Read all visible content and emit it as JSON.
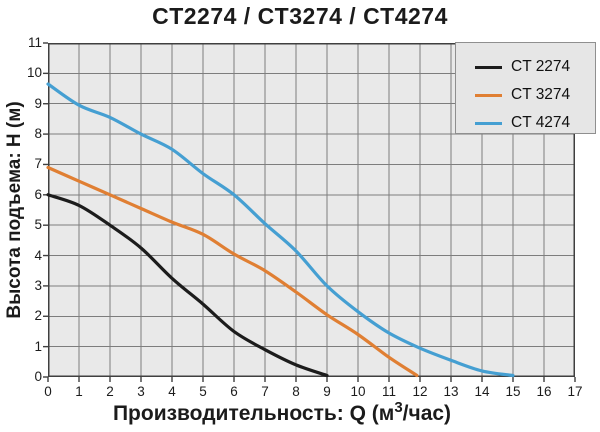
{
  "chart_data": {
    "type": "line",
    "title": "CT2274 / CT3274 / CT4274",
    "xlabel": "Производительность: Q (м³/час)",
    "xlabel_prefix": "Производительность: Q (м",
    "xlabel_sup": "3",
    "xlabel_suffix": "/час)",
    "ylabel": "Высота подъема: H (м)",
    "xlim": [
      0,
      17
    ],
    "ylim": [
      0,
      11
    ],
    "x_ticks": [
      "0",
      "1",
      "2",
      "3",
      "4",
      "5",
      "6",
      "7",
      "8",
      "9",
      "10",
      "11",
      "12",
      "13",
      "14",
      "15",
      "16",
      "17"
    ],
    "y_ticks": [
      "0",
      "1",
      "2",
      "3",
      "4",
      "5",
      "6",
      "7",
      "8",
      "9",
      "10",
      "11"
    ],
    "grid": true,
    "colors": {
      "plot_bg": "#e9e9e9",
      "grid": "#7d7d7d",
      "spine": "#3f3f3f",
      "text": "#1b1b1b",
      "legend_bg": "#e6e6e6",
      "legend_border": "#8f8f8f"
    },
    "legend_position": "top-right",
    "series": [
      {
        "name": "CT 2274",
        "color": "#1c1c1c",
        "points": [
          [
            0,
            6.0
          ],
          [
            1,
            5.65
          ],
          [
            2,
            5.0
          ],
          [
            3,
            4.25
          ],
          [
            4,
            3.25
          ],
          [
            5,
            2.4
          ],
          [
            6,
            1.5
          ],
          [
            7,
            0.9
          ],
          [
            8,
            0.4
          ],
          [
            9,
            0.05
          ]
        ]
      },
      {
        "name": "CT 3274",
        "color": "#e07f33",
        "points": [
          [
            0,
            6.9
          ],
          [
            1,
            6.45
          ],
          [
            2,
            6.0
          ],
          [
            3,
            5.55
          ],
          [
            4,
            5.1
          ],
          [
            5,
            4.7
          ],
          [
            6,
            4.05
          ],
          [
            7,
            3.5
          ],
          [
            8,
            2.8
          ],
          [
            9,
            2.05
          ],
          [
            10,
            1.4
          ],
          [
            11,
            0.65
          ],
          [
            11.9,
            0.05
          ]
        ]
      },
      {
        "name": "CT 4274",
        "color": "#459fd2",
        "points": [
          [
            0,
            9.65
          ],
          [
            1,
            8.95
          ],
          [
            2,
            8.55
          ],
          [
            3,
            8.0
          ],
          [
            4,
            7.5
          ],
          [
            5,
            6.7
          ],
          [
            6,
            6.0
          ],
          [
            7,
            5.05
          ],
          [
            8,
            4.15
          ],
          [
            9,
            3.0
          ],
          [
            10,
            2.15
          ],
          [
            11,
            1.45
          ],
          [
            12,
            0.95
          ],
          [
            13,
            0.55
          ],
          [
            14,
            0.2
          ],
          [
            15,
            0.05
          ]
        ]
      }
    ]
  }
}
